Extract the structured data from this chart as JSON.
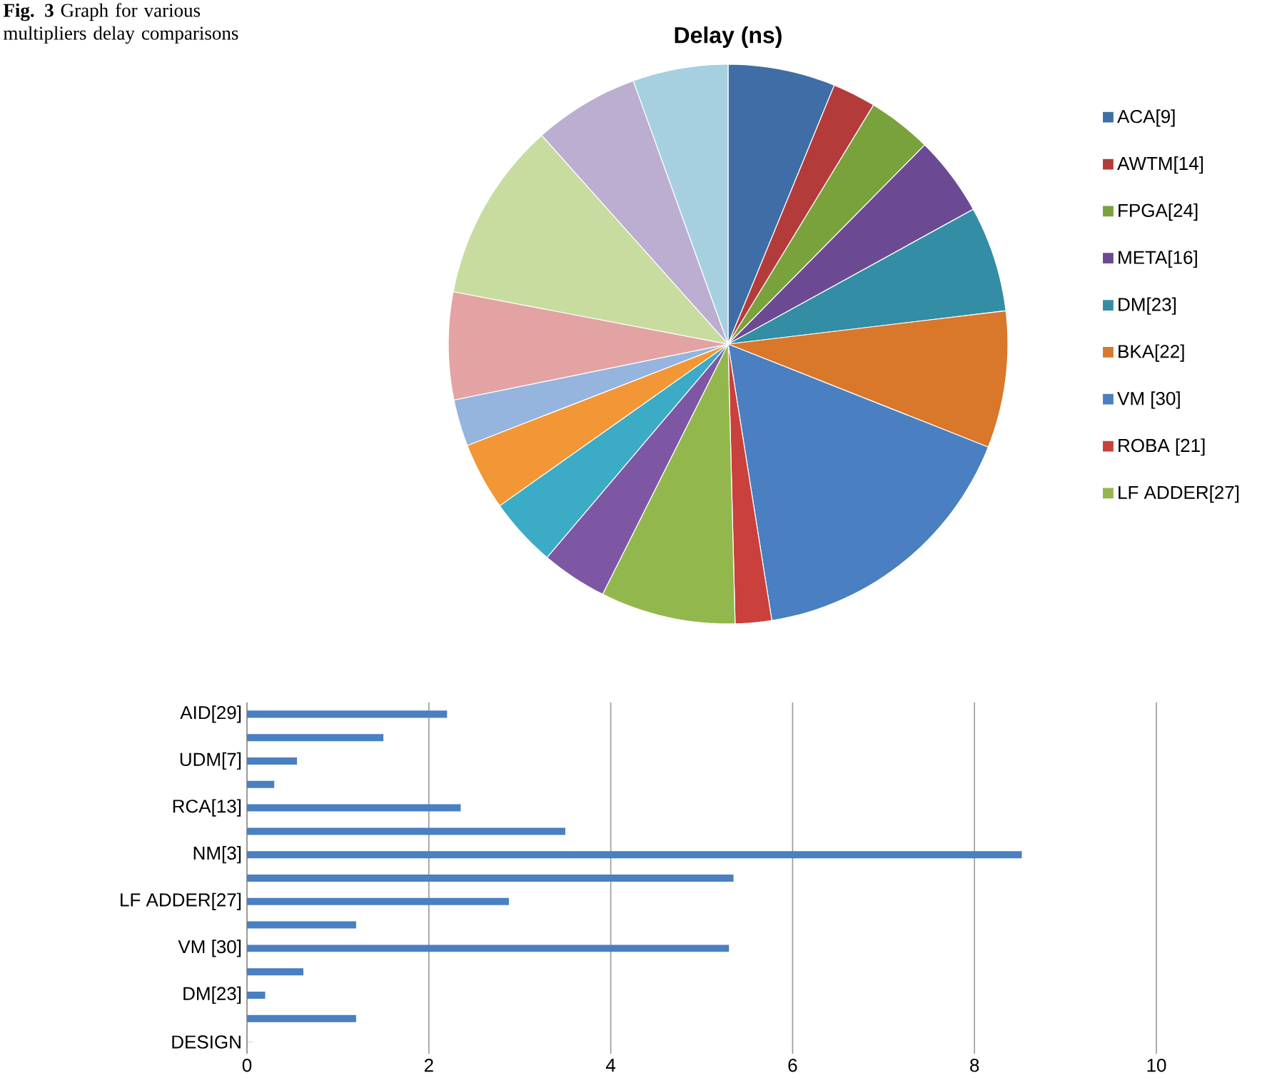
{
  "chart_data": [
    {
      "type": "pie",
      "title": "Delay (ns)",
      "categories": [
        "ACA[9]",
        "AWTM[14]",
        "FPGA[24]",
        "META[16]",
        "DM[23]",
        "BKA[22]",
        "VM [30]",
        "ROBA [21]",
        "LF ADDER[27]",
        null,
        null,
        null,
        null,
        null,
        null,
        null,
        null
      ],
      "values": [
        6.2,
        2.5,
        3.7,
        4.6,
        6.1,
        7.9,
        16.5,
        2.1,
        7.8,
        3.8,
        4.0,
        3.9,
        2.7,
        6.2,
        10.4,
        6.1,
        5.5
      ],
      "colors": [
        "#3f6ea6",
        "#b33c3a",
        "#7aa23c",
        "#6c4a93",
        "#338da5",
        "#d9772b",
        "#4a7fc1",
        "#c9403c",
        "#92b84d",
        "#7d57a4",
        "#3cabc6",
        "#f39636",
        "#95b4de",
        "#e3a3a3",
        "#c8dca0",
        "#bcaed0",
        "#a6d0e0"
      ],
      "legend": "right",
      "annotations": [
        "**Fig. 3** Graph for various multipliers delay comparisons"
      ]
    },
    {
      "type": "bar",
      "orientation": "horizontal",
      "categories": [
        "AID[29]",
        null,
        "UDM[7]",
        null,
        "RCA[13]",
        null,
        "NM[3]",
        null,
        "LF ADDER[27]",
        null,
        "VM [30]",
        null,
        "DM[23]",
        null,
        "DESIGN"
      ],
      "values": [
        2.2,
        1.5,
        0.55,
        0.3,
        2.35,
        3.5,
        8.52,
        5.35,
        2.88,
        1.2,
        5.3,
        0.62,
        0.2,
        1.2,
        null
      ],
      "color": "#4a7fc1",
      "xlim": [
        0,
        10
      ],
      "xticks": [
        0,
        2,
        4,
        6,
        8,
        10
      ],
      "grid": "x"
    }
  ]
}
